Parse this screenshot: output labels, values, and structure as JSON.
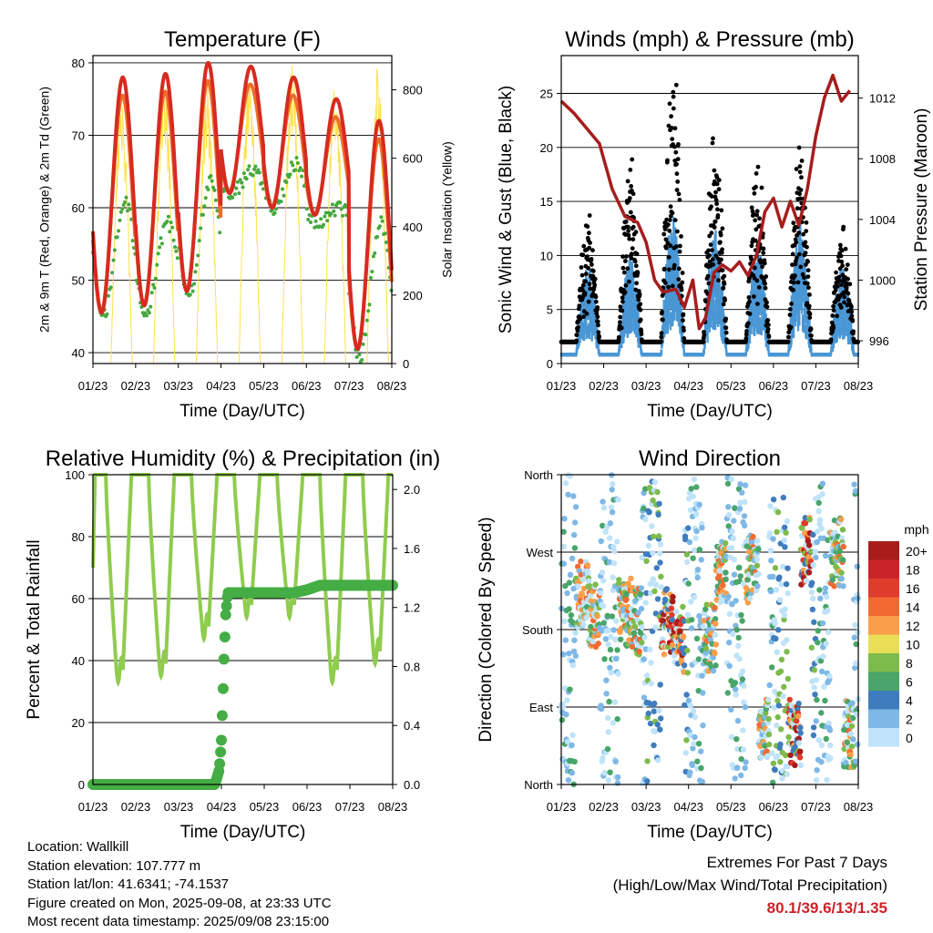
{
  "colors": {
    "temp2m": "#d62b20",
    "temp9m": "#ee6d2a",
    "dewpoint": "#45a83f",
    "solar": "#ffe14c",
    "wind": "#4a97d5",
    "gust": "#000000",
    "pressure": "#a61d1d",
    "rh": "#8fcc4f",
    "precip": "#45ad45",
    "extremes": "#cc2229"
  },
  "x_ticks": [
    "01/23",
    "02/23",
    "03/23",
    "04/23",
    "05/23",
    "06/23",
    "07/23",
    "08/23"
  ],
  "chart_data": [
    {
      "type": "line",
      "title": "Temperature (F)",
      "xlabel": "Time (Day/UTC)",
      "ylabel": "2m & 9m T (Red, Orange) & 2m Td (Green)",
      "ylabel_right": "Solar Insolation (Yellow)",
      "ylim": [
        38.5,
        81
      ],
      "yticks": [
        40,
        50,
        60,
        70,
        80
      ],
      "ylim_right": [
        0,
        900
      ],
      "yticks_right": [
        0,
        200,
        400,
        600,
        800
      ],
      "x_range": [
        0,
        7
      ],
      "days": {
        "tmax": [
          78,
          78.5,
          80,
          79.5,
          78,
          75,
          72
        ],
        "tmin": [
          45.5,
          46.5,
          48.5,
          62,
          60,
          59,
          40.5
        ],
        "tdmax": [
          61,
          58,
          63.5,
          65,
          66,
          60,
          58
        ],
        "tdmin": [
          45,
          45.5,
          48,
          62,
          60,
          58,
          39.5
        ],
        "solar_peak": [
          780,
          850,
          830,
          880,
          880,
          850,
          880
        ]
      }
    },
    {
      "type": "scatter",
      "title": "Winds (mph) & Pressure (mb)",
      "xlabel": "Time (Day/UTC)",
      "ylabel": "Sonic Wind & Gust (Blue, Black)",
      "ylabel_right": "Station Pressure (Maroon)",
      "ylim": [
        0,
        28.5
      ],
      "yticks": [
        0,
        5,
        10,
        15,
        20,
        25
      ],
      "ylim_right": [
        994.5,
        1014.8
      ],
      "yticks_right": [
        996,
        1000,
        1004,
        1008,
        1012
      ],
      "x_range": [
        0,
        7
      ],
      "days": {
        "gust_peak": [
          12,
          17,
          26.5,
          21,
          17,
          18.5,
          11
        ],
        "wind_peak": [
          8,
          9,
          13,
          12,
          10,
          12,
          8
        ]
      },
      "pressure": [
        [
          0,
          1011.8
        ],
        [
          0.3,
          1011
        ],
        [
          0.6,
          1010
        ],
        [
          0.9,
          1009
        ],
        [
          1.2,
          1006
        ],
        [
          1.5,
          1004.2
        ],
        [
          1.8,
          1003.8
        ],
        [
          2.0,
          1002.5
        ],
        [
          2.2,
          1000
        ],
        [
          2.4,
          999.2
        ],
        [
          2.7,
          999.4
        ],
        [
          2.9,
          998.2
        ],
        [
          3.1,
          1000
        ],
        [
          3.25,
          996.8
        ],
        [
          3.4,
          997.5
        ],
        [
          3.6,
          1000.5
        ],
        [
          3.8,
          1001
        ],
        [
          4.0,
          1000.6
        ],
        [
          4.2,
          1001.2
        ],
        [
          4.4,
          1000.3
        ],
        [
          4.6,
          1001.6
        ],
        [
          4.8,
          1004.5
        ],
        [
          5.0,
          1005.4
        ],
        [
          5.2,
          1003.5
        ],
        [
          5.4,
          1005.2
        ],
        [
          5.6,
          1003.6
        ],
        [
          5.8,
          1006
        ],
        [
          6.0,
          1009.5
        ],
        [
          6.2,
          1012
        ],
        [
          6.4,
          1013.5
        ],
        [
          6.6,
          1011.8
        ],
        [
          6.8,
          1012.5
        ]
      ]
    },
    {
      "type": "line",
      "title": "Relative Humidity (%) & Precipitation (in)",
      "xlabel": "Time (Day/UTC)",
      "ylabel": "Percent & Total Rainfall",
      "ylim": [
        0,
        100
      ],
      "yticks": [
        0,
        20,
        40,
        60,
        80,
        100
      ],
      "ylim_right": [
        0,
        2.1
      ],
      "yticks_right": [
        "0.0",
        "0.4",
        "0.8",
        "1.2",
        "1.6",
        "2.0"
      ],
      "x_range": [
        0,
        7
      ],
      "days": {
        "rh_min": [
          37,
          39,
          51,
          58,
          58,
          37,
          43
        ],
        "rh_max": [
          100,
          100,
          100,
          100,
          100,
          100,
          100
        ]
      },
      "precip_total": [
        [
          0,
          0
        ],
        [
          2.85,
          0
        ],
        [
          2.95,
          0.1
        ],
        [
          3.0,
          0.3
        ],
        [
          3.03,
          0.55
        ],
        [
          3.06,
          0.85
        ],
        [
          3.1,
          1.15
        ],
        [
          3.15,
          1.3
        ],
        [
          4.7,
          1.3
        ],
        [
          5.0,
          1.32
        ],
        [
          5.3,
          1.35
        ],
        [
          7.0,
          1.35
        ]
      ]
    },
    {
      "type": "scatter",
      "title": "Wind Direction",
      "xlabel": "Time (Day/UTC)",
      "ylabel": "Direction (Colored By Speed)",
      "yticks": [
        "North",
        "East",
        "South",
        "West",
        "North"
      ],
      "ylim": [
        0,
        360
      ],
      "x_range": [
        0,
        7
      ],
      "legend": {
        "title": "mph",
        "labels": [
          "20+",
          "18",
          "16",
          "14",
          "12",
          "10",
          "8",
          "6",
          "4",
          "2",
          "0"
        ],
        "colors": [
          "#a81c1c",
          "#c9242a",
          "#e03c2c",
          "#f26a32",
          "#fa9e48",
          "#e8df56",
          "#7dbb4c",
          "#49a56a",
          "#3f7cbd",
          "#7eb8e6",
          "#bfe3f9"
        ]
      }
    }
  ],
  "footer": {
    "location": "Location: Wallkill",
    "elevation": "Station elevation: 107.777 m",
    "latlon": "Station lat/lon: 41.6341; -74.1537",
    "created": "Figure created on Mon, 2025-09-08, at 23:33 UTC",
    "latest": "Most recent data timestamp: 2025/09/08 23:15:00"
  },
  "extremes": {
    "line1": "Extremes For Past 7 Days",
    "line2": "(High/Low/Max Wind/Total Precipitation)",
    "values": "80.1/39.6/13/1.35"
  }
}
